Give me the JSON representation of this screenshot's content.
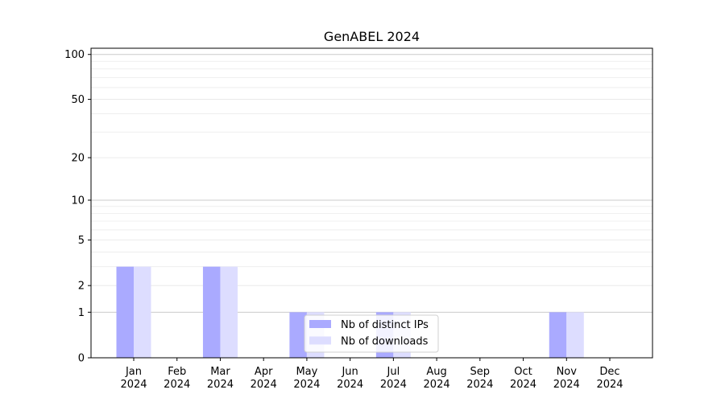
{
  "chart_data": {
    "type": "bar",
    "title": "GenABEL 2024",
    "xlabel": "",
    "ylabel": "",
    "y_scale": "log(1+y)",
    "ylim": [
      0,
      110
    ],
    "y_ticks": [
      0,
      1,
      2,
      5,
      10,
      20,
      50,
      100
    ],
    "y_tick_labels": [
      "0",
      "1",
      "2",
      "5",
      "10",
      "20",
      "50",
      "100"
    ],
    "categories": [
      [
        "Jan",
        "2024"
      ],
      [
        "Feb",
        "2024"
      ],
      [
        "Mar",
        "2024"
      ],
      [
        "Apr",
        "2024"
      ],
      [
        "May",
        "2024"
      ],
      [
        "Jun",
        "2024"
      ],
      [
        "Jul",
        "2024"
      ],
      [
        "Aug",
        "2024"
      ],
      [
        "Sep",
        "2024"
      ],
      [
        "Oct",
        "2024"
      ],
      [
        "Nov",
        "2024"
      ],
      [
        "Dec",
        "2024"
      ]
    ],
    "series": [
      {
        "name": "Nb of distinct IPs",
        "color": "#aaaaff",
        "values": [
          3,
          0,
          3,
          0,
          1,
          0,
          1,
          0,
          0,
          0,
          1,
          0
        ]
      },
      {
        "name": "Nb of downloads",
        "color": "#ddddff",
        "values": [
          3,
          0,
          3,
          0,
          1,
          0,
          1,
          0,
          0,
          0,
          1,
          0
        ]
      }
    ],
    "grid": "horizontal",
    "legend_position": "bottom-center"
  }
}
